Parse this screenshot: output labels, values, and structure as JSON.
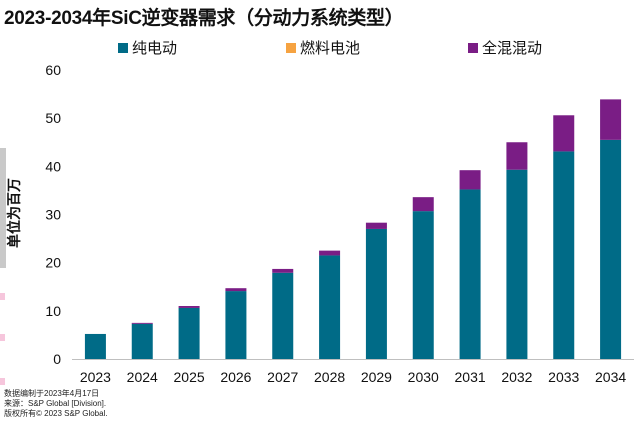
{
  "chart_data": {
    "type": "bar",
    "stacked": true,
    "title": "2023-2034年SiC逆变器需求（分动力系统类型）",
    "xlabel": "",
    "ylabel": "单位为百万",
    "ylim": [
      0,
      60
    ],
    "yticks": [
      0,
      10,
      20,
      30,
      40,
      50,
      60
    ],
    "grid": false,
    "legend_position": "top",
    "categories": [
      "2023",
      "2024",
      "2025",
      "2026",
      "2027",
      "2028",
      "2029",
      "2030",
      "2031",
      "2032",
      "2033",
      "2034"
    ],
    "series": [
      {
        "name": "纯电动",
        "color": "#006b87",
        "values": [
          5.2,
          7.3,
          10.6,
          14.1,
          17.9,
          21.5,
          27.0,
          30.7,
          35.2,
          39.3,
          43.1,
          45.5
        ]
      },
      {
        "name": "燃料电池",
        "color": "#f6a341",
        "values": [
          0,
          0,
          0,
          0,
          0,
          0,
          0,
          0,
          0,
          0,
          0,
          0
        ]
      },
      {
        "name": "全混混动",
        "color": "#7a1d85",
        "values": [
          0,
          0.2,
          0.4,
          0.6,
          0.8,
          1.0,
          1.3,
          2.9,
          4.0,
          5.7,
          7.5,
          8.4
        ]
      }
    ]
  },
  "footnotes": {
    "line1": "数据编制于2023年4月17日",
    "line2": "来源：S&P Global [Division].",
    "line3": "版权所有© 2023 S&P Global."
  }
}
